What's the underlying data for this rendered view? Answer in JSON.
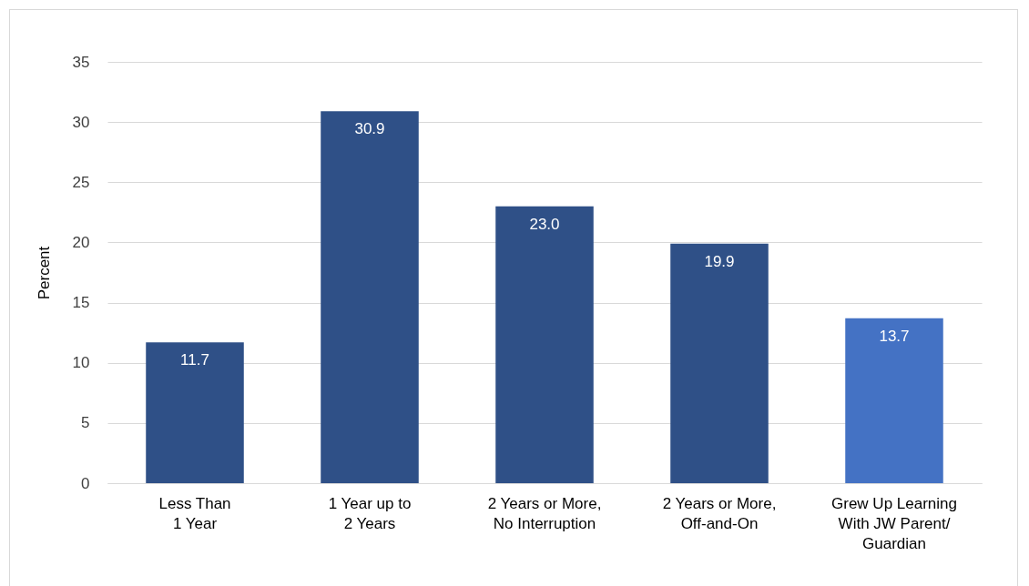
{
  "chart_data": {
    "type": "bar",
    "ylabel": "Percent",
    "categories": [
      "Less Than\n1 Year",
      "1 Year up to\n2 Years",
      "2 Years or More,\nNo Interruption",
      "2 Years or More,\nOff-and-On",
      "Grew Up Learning\nWith JW Parent/\nGuardian"
    ],
    "values": [
      11.7,
      30.9,
      23.0,
      19.9,
      13.7
    ],
    "colors": [
      "#2f5087",
      "#2f5087",
      "#2f5087",
      "#2f5087",
      "#4472c4"
    ],
    "value_labels": [
      "11.7",
      "30.9",
      "23.0",
      "19.9",
      "13.7"
    ],
    "ylim": [
      0,
      35
    ],
    "yticks": [
      0,
      5,
      10,
      15,
      20,
      25,
      30,
      35
    ],
    "grid": "y"
  }
}
